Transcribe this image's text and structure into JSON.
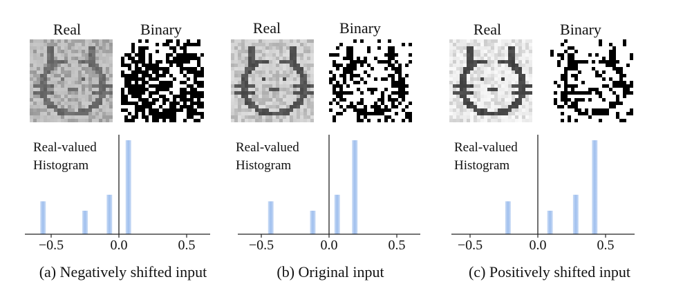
{
  "chart_data": [
    {
      "type": "bar",
      "image_labels": [
        "Real",
        "Binary"
      ],
      "title": "Real-valued Histogram",
      "title_lines": [
        "Real-valued",
        "Histogram"
      ],
      "caption": "(a) Negatively shifted input",
      "x": [
        -0.56,
        -0.25,
        -0.07,
        0.07
      ],
      "values": [
        0.35,
        0.25,
        0.42,
        1.0
      ],
      "xlim": [
        -0.62,
        0.65
      ],
      "ylim": [
        0,
        1.0
      ],
      "xticks": [
        -0.5,
        0.0,
        0.5
      ],
      "xtick_labels": [
        "−0.5",
        "0.0",
        "0.5"
      ],
      "grid": false,
      "real_gray_level": "dark",
      "binary_density": "high"
    },
    {
      "type": "bar",
      "image_labels": [
        "Real",
        "Binary"
      ],
      "title": "Real-valued Histogram",
      "title_lines": [
        "Real-valued",
        "Histogram"
      ],
      "caption": "(b) Original input",
      "x": [
        -0.43,
        -0.12,
        0.06,
        0.19
      ],
      "values": [
        0.35,
        0.25,
        0.42,
        1.0
      ],
      "xlim": [
        -0.62,
        0.65
      ],
      "ylim": [
        0,
        1.0
      ],
      "xticks": [
        -0.5,
        0.0,
        0.5
      ],
      "xtick_labels": [
        "−0.5",
        "0.0",
        "0.5"
      ],
      "grid": false,
      "real_gray_level": "medium",
      "binary_density": "medium"
    },
    {
      "type": "bar",
      "image_labels": [
        "Real",
        "Binary"
      ],
      "title": "Real-valued Histogram",
      "title_lines": [
        "Real-valued",
        "Histogram"
      ],
      "caption": "(c) Positively shifted input",
      "x": [
        -0.22,
        0.09,
        0.28,
        0.42
      ],
      "values": [
        0.35,
        0.25,
        0.42,
        1.0
      ],
      "xlim": [
        -0.62,
        0.65
      ],
      "ylim": [
        0,
        1.0
      ],
      "xticks": [
        -0.5,
        0.0,
        0.5
      ],
      "xtick_labels": [
        "−0.5",
        "0.0",
        "0.5"
      ],
      "grid": false,
      "real_gray_level": "light",
      "binary_density": "low"
    }
  ],
  "colors": {
    "bar": "#a9c6ef",
    "axis": "#222222",
    "ink": "#111111"
  }
}
